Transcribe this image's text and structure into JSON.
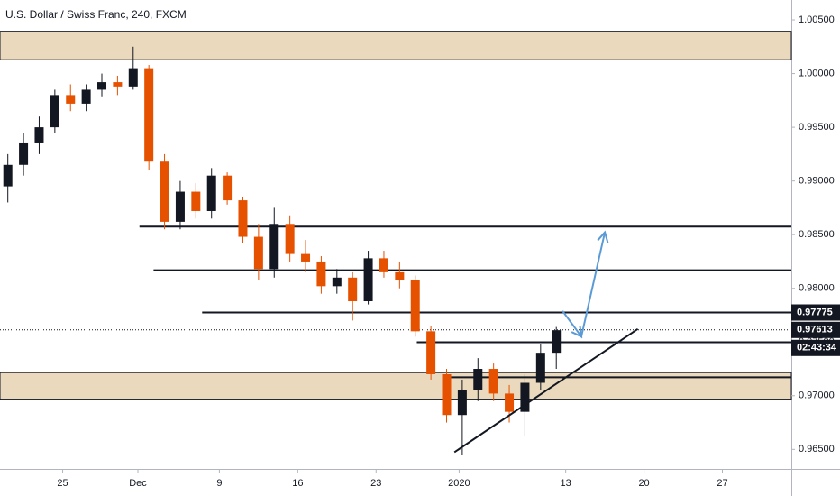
{
  "chart_data": {
    "type": "candlestick",
    "title": "U.S. Dollar / Swiss Franc, 240, FXCM",
    "up_color": "#131722",
    "down_color": "#e65100",
    "xlim": [
      0,
      50.5
    ],
    "xticks": [
      {
        "value": 4,
        "label": "25"
      },
      {
        "value": 8.8,
        "label": "Dec"
      },
      {
        "value": 14,
        "label": "9"
      },
      {
        "value": 19,
        "label": "16"
      },
      {
        "value": 24,
        "label": "23"
      },
      {
        "value": 29.3,
        "label": "2020"
      },
      {
        "value": 36.1,
        "label": "13"
      },
      {
        "value": 41.1,
        "label": "20"
      },
      {
        "value": 46.1,
        "label": "27"
      }
    ],
    "ylim": [
      0.96318,
      1.00685
    ],
    "yticks": [
      {
        "value": 1.005,
        "label": "1.00500"
      },
      {
        "value": 1.0,
        "label": "1.00000"
      },
      {
        "value": 0.995,
        "label": "0.99500"
      },
      {
        "value": 0.99,
        "label": "0.99000"
      },
      {
        "value": 0.985,
        "label": "0.98500"
      },
      {
        "value": 0.98,
        "label": "0.98000"
      },
      {
        "value": 0.975,
        "label": "0.97500"
      },
      {
        "value": 0.97,
        "label": "0.97000"
      },
      {
        "value": 0.965,
        "label": "0.96500"
      }
    ],
    "x": [
      0.5,
      1.5,
      2.5,
      3.5,
      4.5,
      5.5,
      6.5,
      7.5,
      8.5,
      9.5,
      10.5,
      11.5,
      12.5,
      13.5,
      14.5,
      15.5,
      16.5,
      17.5,
      18.5,
      19.5,
      20.5,
      21.5,
      22.5,
      23.5,
      24.5,
      25.5,
      26.5,
      27.5,
      28.5,
      29.5,
      30.5,
      31.5,
      32.5,
      33.5,
      34.5,
      35.5
    ],
    "open": [
      0.9895,
      0.9915,
      0.9935,
      0.995,
      0.998,
      0.9972,
      0.9985,
      0.9992,
      0.9988,
      1.0005,
      0.9918,
      0.9862,
      0.989,
      0.9872,
      0.9905,
      0.9882,
      0.9848,
      0.9818,
      0.986,
      0.9832,
      0.9825,
      0.9802,
      0.981,
      0.9788,
      0.9828,
      0.9815,
      0.9808,
      0.976,
      0.972,
      0.9682,
      0.9705,
      0.9725,
      0.9702,
      0.9685,
      0.9712,
      0.974
    ],
    "high": [
      0.9925,
      0.9945,
      0.996,
      0.9985,
      0.999,
      0.999,
      1.0,
      0.9998,
      1.0025,
      1.0008,
      0.9925,
      0.99,
      0.9898,
      0.9912,
      0.9908,
      0.9885,
      0.986,
      0.9875,
      0.9868,
      0.9845,
      0.983,
      0.9818,
      0.9815,
      0.9835,
      0.9835,
      0.9825,
      0.9812,
      0.9765,
      0.9725,
      0.9715,
      0.9735,
      0.973,
      0.971,
      0.972,
      0.9748,
      0.9764
    ],
    "low": [
      0.988,
      0.9905,
      0.9925,
      0.9945,
      0.9965,
      0.9965,
      0.9978,
      0.998,
      0.9985,
      0.991,
      0.9855,
      0.9855,
      0.9865,
      0.9865,
      0.9878,
      0.9842,
      0.9808,
      0.981,
      0.9825,
      0.9815,
      0.9795,
      0.9795,
      0.977,
      0.9785,
      0.981,
      0.98,
      0.9755,
      0.9715,
      0.9675,
      0.9645,
      0.9695,
      0.9695,
      0.9675,
      0.9662,
      0.9705,
      0.9725
    ],
    "close": [
      0.9915,
      0.9935,
      0.995,
      0.998,
      0.9972,
      0.9985,
      0.9992,
      0.9988,
      1.0005,
      0.9918,
      0.9862,
      0.989,
      0.9872,
      0.9905,
      0.9882,
      0.9848,
      0.9818,
      0.986,
      0.9832,
      0.9825,
      0.9802,
      0.981,
      0.9788,
      0.9828,
      0.9815,
      0.9808,
      0.976,
      0.972,
      0.9682,
      0.9705,
      0.9725,
      0.9702,
      0.9685,
      0.9712,
      0.974,
      0.9761
    ],
    "zones": [
      {
        "from": 1.00129,
        "to": 1.00394
      },
      {
        "from": 0.96968,
        "to": 0.97215
      }
    ],
    "zone_color": "#ead9bd",
    "levels": [
      {
        "x": 8.9,
        "y": 0.98575
      },
      {
        "x": 9.8,
        "y": 0.98169
      },
      {
        "x": 12.9,
        "y": 0.97775
      },
      {
        "x": 26.6,
        "y": 0.97498
      },
      {
        "x": 28.3,
        "y": 0.97171
      }
    ],
    "trend_line": {
      "x": [
        29.0,
        40.7
      ],
      "y": [
        0.96474,
        0.97621
      ]
    },
    "arrow": {
      "x": [
        35.9,
        37.1,
        38.6
      ],
      "y": [
        0.97789,
        0.97551,
        0.98522
      ],
      "color": "#5b9bd5"
    },
    "price_labels": [
      {
        "value": 0.97775,
        "label": "0.97775"
      },
      {
        "value": 0.97613,
        "label": "0.97613"
      }
    ],
    "countdown": "02:43:34"
  }
}
